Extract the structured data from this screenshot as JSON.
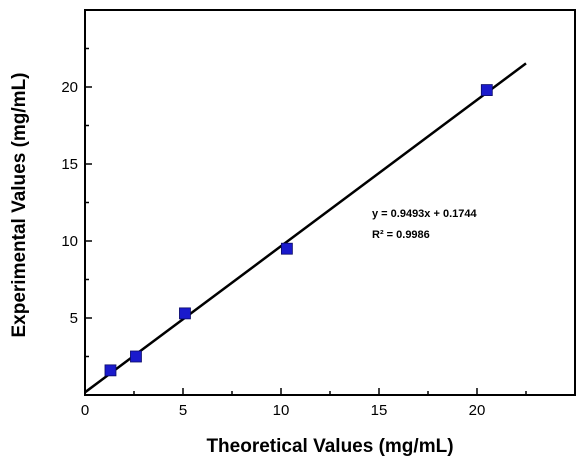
{
  "chart_data": {
    "type": "scatter",
    "title": "",
    "xlabel": "Theoretical Values (mg/mL)",
    "ylabel": "Experimental Values (mg/mL)",
    "xlim": [
      0,
      25
    ],
    "ylim": [
      0,
      25
    ],
    "xticks": [
      0,
      5,
      10,
      15,
      20
    ],
    "yticks": [
      5,
      10,
      15,
      20
    ],
    "grid": false,
    "series": [
      {
        "marker": "square",
        "color": "#1a1acc",
        "x": [
          1.3,
          2.6,
          5.1,
          10.3,
          20.5
        ],
        "y": [
          1.6,
          2.5,
          5.3,
          9.5,
          19.8
        ]
      }
    ],
    "fit_line": {
      "slope": 0.9493,
      "intercept": 0.1744,
      "x_range": [
        0,
        22.5
      ],
      "color": "#000000"
    },
    "annotations": [
      "y = 0.9493x + 0.1744",
      "R² = 0.9986"
    ]
  }
}
